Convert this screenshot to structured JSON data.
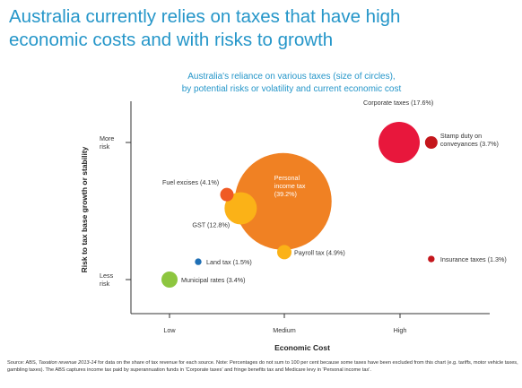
{
  "headline": {
    "line1": "Australia currently relies on taxes that have high",
    "line2": "economic costs and with risks to growth"
  },
  "subtitle": {
    "line1": "Australia's reliance on various taxes (size of circles),",
    "line2": "by potential risks or volatility and current economic cost"
  },
  "chart_data": {
    "type": "bubble",
    "xlabel": "Economic Cost",
    "ylabel": "Risk to tax base growth or stability",
    "x_ticks": [
      "Low",
      "Medium",
      "High"
    ],
    "y_ticks": [
      {
        "label_lines": [
          "More",
          "risk"
        ],
        "value": "More risk"
      },
      {
        "label_lines": [
          "Less",
          "risk"
        ],
        "value": "Less risk"
      }
    ],
    "grid": false,
    "x_domain": [
      0,
      3.2
    ],
    "y_domain": [
      -0.1,
      1.25
    ],
    "bubbles": [
      {
        "name": "Corporate taxes",
        "label_lines": [
          "Corporate taxes (17.6%)"
        ],
        "share_pct": 17.6,
        "x": 2.0,
        "y": 1.0,
        "color": "#e8173c",
        "r": 23
      },
      {
        "name": "Stamp duty on conveyances",
        "label_lines": [
          "Stamp duty on",
          "conveyances (3.7%)"
        ],
        "share_pct": 3.7,
        "x": 2.28,
        "y": 1.0,
        "color": "#c4161c",
        "r": 7
      },
      {
        "name": "Personal income tax",
        "label_lines": [
          "Personal",
          "income tax",
          "(39.2%)"
        ],
        "share_pct": 39.2,
        "x": 0.99,
        "y": 0.57,
        "color": "#f08123",
        "r": 54
      },
      {
        "name": "Fuel excises",
        "label_lines": [
          "Fuel excises (4.1%)"
        ],
        "share_pct": 4.1,
        "x": 0.5,
        "y": 0.62,
        "color": "#f05a24",
        "r": 7.5
      },
      {
        "name": "GST",
        "label_lines": [
          "GST (12.8%)"
        ],
        "share_pct": 12.8,
        "x": 0.62,
        "y": 0.52,
        "color": "#fbb217",
        "r": 18
      },
      {
        "name": "Payroll tax",
        "label_lines": [
          "Payroll tax (4.9%)"
        ],
        "share_pct": 4.9,
        "x": 1.0,
        "y": 0.2,
        "color": "#fbb217",
        "r": 8
      },
      {
        "name": "Land tax",
        "label_lines": [
          "Land tax (1.5%)"
        ],
        "share_pct": 1.5,
        "x": 0.25,
        "y": 0.13,
        "color": "#1f6fb5",
        "r": 3.7
      },
      {
        "name": "Insurance taxes",
        "label_lines": [
          "Insurance taxes (1.3%)"
        ],
        "share_pct": 1.3,
        "x": 2.28,
        "y": 0.15,
        "color": "#c4161c",
        "r": 3.7
      },
      {
        "name": "Municipal rates",
        "label_lines": [
          "Municipal rates (3.4%)"
        ],
        "share_pct": 3.4,
        "x": 0.0,
        "y": 0.0,
        "color": "#8dc63f",
        "r": 9
      }
    ]
  },
  "source": {
    "prefix": "Source: ABS, ",
    "italic": "Taxation revenue 2013-14",
    "rest": " for data on the share of tax revenue for each source. Note: Percentages do not sum to 100 per cent because some taxes have been excluded from this chart (e.g. tariffs, motor vehicle taxes, gambling taxes). The ABS captures income tax paid by superannuation funds in 'Corporate taxes' and fringe benefits tax and Medicare levy in 'Personal income tax'."
  }
}
